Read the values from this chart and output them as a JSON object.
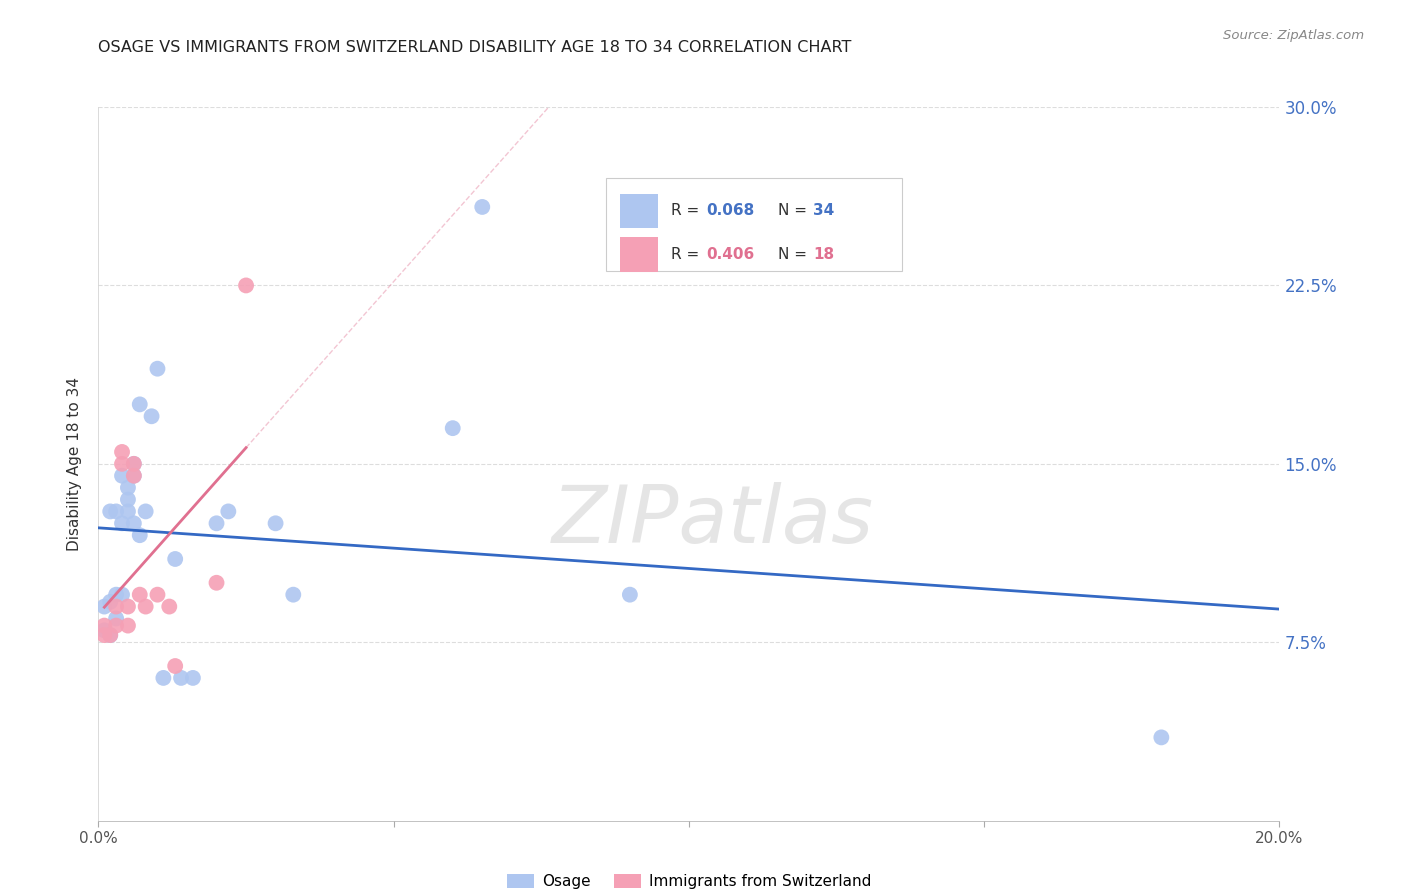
{
  "title": "OSAGE VS IMMIGRANTS FROM SWITZERLAND DISABILITY AGE 18 TO 34 CORRELATION CHART",
  "source": "Source: ZipAtlas.com",
  "ylabel": "Disability Age 18 to 34",
  "xlim": [
    0.0,
    0.2
  ],
  "ylim": [
    0.0,
    0.3
  ],
  "yticks": [
    0.075,
    0.15,
    0.225,
    0.3
  ],
  "ytick_labels": [
    "7.5%",
    "15.0%",
    "22.5%",
    "30.0%"
  ],
  "xticks": [
    0.0,
    0.05,
    0.1,
    0.15,
    0.2
  ],
  "xtick_labels": [
    "0.0%",
    "",
    "",
    "",
    "20.0%"
  ],
  "background_color": "#ffffff",
  "grid_color": "#dddddd",
  "scatter1_color": "#aec6f0",
  "scatter2_color": "#f5a0b5",
  "trendline1_color": "#3469c4",
  "trendline2_color": "#e07090",
  "watermark": "ZIPatlas",
  "osage_x": [
    0.001,
    0.001,
    0.002,
    0.002,
    0.002,
    0.003,
    0.003,
    0.003,
    0.004,
    0.004,
    0.004,
    0.005,
    0.005,
    0.005,
    0.006,
    0.006,
    0.006,
    0.007,
    0.007,
    0.008,
    0.009,
    0.01,
    0.011,
    0.013,
    0.014,
    0.016,
    0.02,
    0.022,
    0.03,
    0.033,
    0.06,
    0.065,
    0.09,
    0.18
  ],
  "osage_y": [
    0.08,
    0.09,
    0.078,
    0.092,
    0.13,
    0.085,
    0.095,
    0.13,
    0.095,
    0.125,
    0.145,
    0.13,
    0.135,
    0.14,
    0.125,
    0.145,
    0.15,
    0.12,
    0.175,
    0.13,
    0.17,
    0.19,
    0.06,
    0.11,
    0.06,
    0.06,
    0.125,
    0.13,
    0.125,
    0.095,
    0.165,
    0.258,
    0.095,
    0.035
  ],
  "swiss_x": [
    0.001,
    0.001,
    0.002,
    0.003,
    0.003,
    0.004,
    0.004,
    0.005,
    0.005,
    0.006,
    0.006,
    0.007,
    0.008,
    0.01,
    0.012,
    0.013,
    0.02,
    0.025
  ],
  "swiss_y": [
    0.078,
    0.082,
    0.078,
    0.082,
    0.09,
    0.15,
    0.155,
    0.082,
    0.09,
    0.145,
    0.15,
    0.095,
    0.09,
    0.095,
    0.09,
    0.065,
    0.1,
    0.225
  ]
}
